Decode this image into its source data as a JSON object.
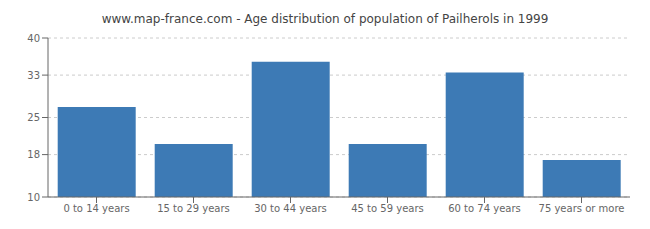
{
  "chart_data": {
    "type": "bar",
    "title": "www.map-france.com - Age distribution of population of Pailherols in 1999",
    "categories": [
      "0 to 14 years",
      "15 to 29 years",
      "30 to 44 years",
      "45 to 59 years",
      "60 to 74 years",
      "75 years or more"
    ],
    "values": [
      27,
      20,
      35.5,
      20,
      33.5,
      17
    ],
    "color": "#3d7ab5",
    "ylim": [
      10,
      40
    ],
    "yticks": [
      10,
      18,
      25,
      33,
      40
    ],
    "grid": true
  }
}
